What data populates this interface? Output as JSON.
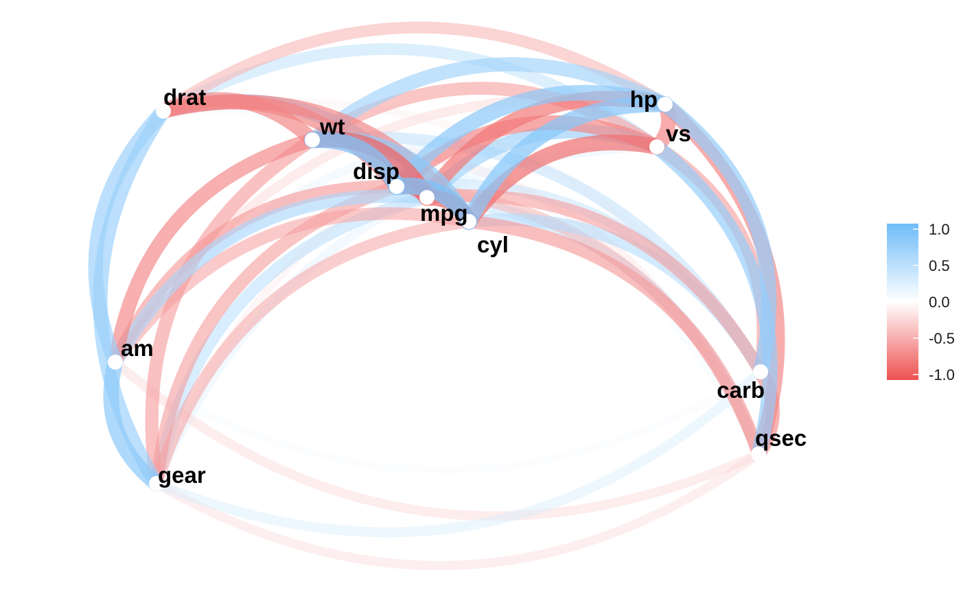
{
  "chart_data": {
    "type": "network",
    "nodes": [
      "mpg",
      "cyl",
      "disp",
      "hp",
      "drat",
      "wt",
      "qsec",
      "vs",
      "am",
      "gear",
      "carb"
    ],
    "edges": [
      {
        "from": "mpg",
        "to": "cyl",
        "r": -0.85
      },
      {
        "from": "mpg",
        "to": "disp",
        "r": -0.85
      },
      {
        "from": "mpg",
        "to": "hp",
        "r": -0.78
      },
      {
        "from": "mpg",
        "to": "drat",
        "r": 0.68
      },
      {
        "from": "mpg",
        "to": "wt",
        "r": -0.87
      },
      {
        "from": "mpg",
        "to": "qsec",
        "r": 0.42
      },
      {
        "from": "mpg",
        "to": "vs",
        "r": 0.66
      },
      {
        "from": "mpg",
        "to": "am",
        "r": 0.6
      },
      {
        "from": "mpg",
        "to": "gear",
        "r": 0.48
      },
      {
        "from": "mpg",
        "to": "carb",
        "r": -0.55
      },
      {
        "from": "cyl",
        "to": "disp",
        "r": 0.9
      },
      {
        "from": "cyl",
        "to": "hp",
        "r": 0.83
      },
      {
        "from": "cyl",
        "to": "drat",
        "r": -0.7
      },
      {
        "from": "cyl",
        "to": "wt",
        "r": 0.78
      },
      {
        "from": "cyl",
        "to": "qsec",
        "r": -0.59
      },
      {
        "from": "cyl",
        "to": "vs",
        "r": -0.81
      },
      {
        "from": "cyl",
        "to": "am",
        "r": -0.52
      },
      {
        "from": "cyl",
        "to": "gear",
        "r": -0.49
      },
      {
        "from": "cyl",
        "to": "carb",
        "r": 0.53
      },
      {
        "from": "disp",
        "to": "hp",
        "r": 0.79
      },
      {
        "from": "disp",
        "to": "drat",
        "r": -0.71
      },
      {
        "from": "disp",
        "to": "wt",
        "r": 0.89
      },
      {
        "from": "disp",
        "to": "qsec",
        "r": -0.43
      },
      {
        "from": "disp",
        "to": "vs",
        "r": -0.71
      },
      {
        "from": "disp",
        "to": "am",
        "r": -0.59
      },
      {
        "from": "disp",
        "to": "gear",
        "r": -0.56
      },
      {
        "from": "disp",
        "to": "carb",
        "r": 0.39
      },
      {
        "from": "hp",
        "to": "drat",
        "r": -0.45
      },
      {
        "from": "hp",
        "to": "wt",
        "r": 0.66
      },
      {
        "from": "hp",
        "to": "qsec",
        "r": -0.71
      },
      {
        "from": "hp",
        "to": "vs",
        "r": -0.72
      },
      {
        "from": "hp",
        "to": "am",
        "r": -0.24
      },
      {
        "from": "hp",
        "to": "gear",
        "r": -0.13
      },
      {
        "from": "hp",
        "to": "carb",
        "r": 0.75
      },
      {
        "from": "drat",
        "to": "wt",
        "r": -0.71
      },
      {
        "from": "drat",
        "to": "qsec",
        "r": 0.09
      },
      {
        "from": "drat",
        "to": "vs",
        "r": 0.44
      },
      {
        "from": "drat",
        "to": "am",
        "r": 0.71
      },
      {
        "from": "drat",
        "to": "gear",
        "r": 0.7
      },
      {
        "from": "drat",
        "to": "carb",
        "r": -0.09
      },
      {
        "from": "wt",
        "to": "qsec",
        "r": -0.17
      },
      {
        "from": "wt",
        "to": "vs",
        "r": -0.55
      },
      {
        "from": "wt",
        "to": "am",
        "r": -0.69
      },
      {
        "from": "wt",
        "to": "gear",
        "r": -0.58
      },
      {
        "from": "wt",
        "to": "carb",
        "r": 0.43
      },
      {
        "from": "qsec",
        "to": "vs",
        "r": 0.74
      },
      {
        "from": "qsec",
        "to": "am",
        "r": -0.23
      },
      {
        "from": "qsec",
        "to": "gear",
        "r": -0.21
      },
      {
        "from": "qsec",
        "to": "carb",
        "r": -0.66
      },
      {
        "from": "vs",
        "to": "am",
        "r": 0.17
      },
      {
        "from": "vs",
        "to": "gear",
        "r": 0.21
      },
      {
        "from": "vs",
        "to": "carb",
        "r": -0.57
      },
      {
        "from": "am",
        "to": "gear",
        "r": 0.79
      },
      {
        "from": "am",
        "to": "carb",
        "r": 0.06
      },
      {
        "from": "gear",
        "to": "carb",
        "r": 0.27
      }
    ],
    "legend": {
      "position": "right",
      "range": [
        -1.0,
        1.0
      ],
      "ticks": [
        {
          "value": 1.0,
          "label": "1.0"
        },
        {
          "value": 0.5,
          "label": "0.5"
        },
        {
          "value": 0.0,
          "label": "0.0"
        },
        {
          "value": -0.5,
          "label": "-0.5"
        },
        {
          "value": -1.0,
          "label": "-1.0"
        }
      ],
      "colors": {
        "positive": "#6FBCF8",
        "neutral": "#FFFFFF",
        "negative": "#EE5050"
      }
    },
    "node_color": "#FFFFFF",
    "label_color": "#000000"
  }
}
